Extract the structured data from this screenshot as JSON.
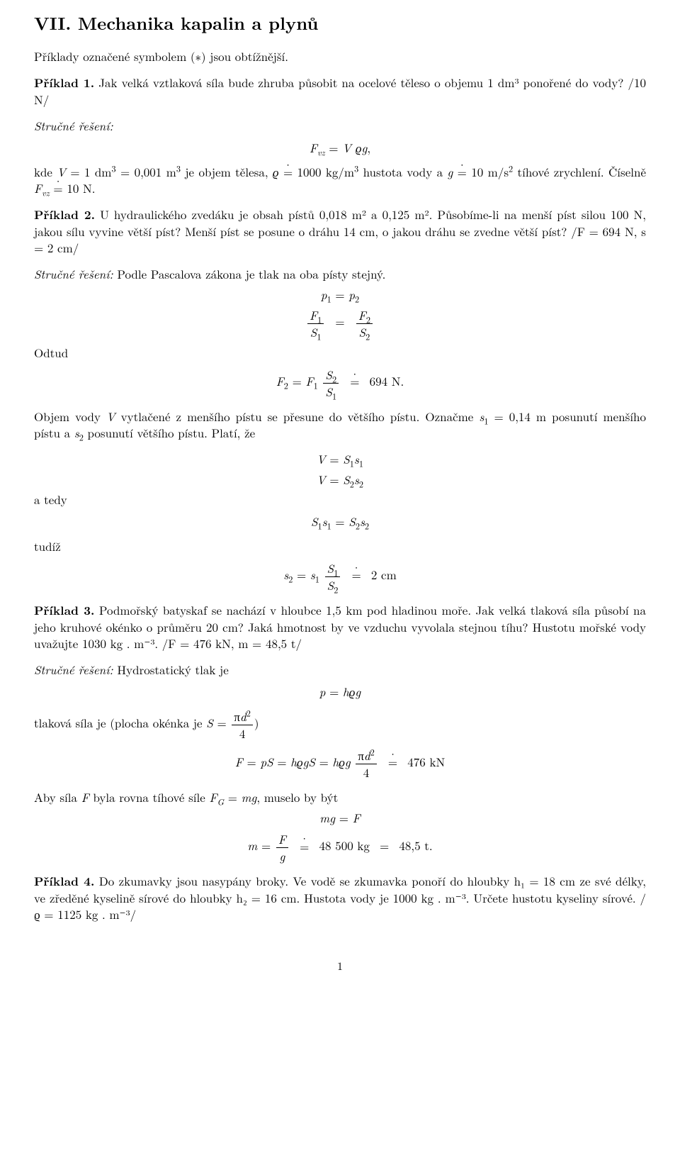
{
  "title": "VII. Mechanika kapalin a plynů",
  "intro": "Příklady označené symbolem (∗) jsou obtížnější.",
  "ex1": {
    "label": "Příklad 1.",
    "text": " Jak velká vztlaková síla bude zhruba působit na ocelové těleso o objemu 1 dm³ ponořené do vody? /10 N/",
    "sol_label": "Stručné řešení:",
    "eq": "F_{vz} = V ϱg,",
    "after": "kde V = 1 dm³ = 0,001 m³ je objem tělesa, ϱ ≐ 1000 kg/m³ hustota vody a g ≐ 10 m/s² tíhové zrychlení. Číselně F_{vz} ≐ 10 N."
  },
  "ex2": {
    "label": "Příklad 2.",
    "text": " U hydraulického zvedáku je obsah pístů 0,018 m² a 0,125 m². Působíme-li na menší píst silou 100 N, jakou sílu vyvine větší píst? Menší píst se posune o dráhu 14 cm, o jakou dráhu se zvedne větší píst? /F = 694 N, s = 2 cm/",
    "sol_label": "Stručné řešení:",
    "sol_text": " Podle Pascalova zákona je tlak na oba písty stejný.",
    "odtud": "Odtud",
    "vol_text": "Objem vody V vytlačené z menšího pístu se přesune do většího pístu. Označme s₁ = 0,14 m posunutí menšího pístu a s₂ posunutí většího pístu. Platí, že",
    "atedy": "a tedy",
    "tudiz": "tudíž"
  },
  "ex3": {
    "label": "Příklad 3.",
    "text": " Podmořský batyskaf se nachází v hloubce 1,5 km pod hladinou moře. Jak velká tlaková síla působí na jeho kruhové okénko o průměru 20 cm? Jaká hmotnost by ve vzduchu vyvolala stejnou tíhu? Hustotu mořské vody uvažujte 1030 kg . m⁻³. /F = 476 kN, m = 48,5 t/",
    "sol_label": "Stručné řešení:",
    "sol_text": " Hydrostatický tlak je",
    "tlak": "tlaková síla je (plocha okénka je S = ",
    "tlak2": ")",
    "aby": "Aby síla F byla rovna tíhové síle F_G = mg, muselo by být"
  },
  "ex4": {
    "label": "Příklad 4.",
    "text": " Do zkumavky jsou nasypány broky. Ve vodě se zkumavka ponoří do hloubky h₁ = 18 cm ze své délky, ve zředěné kyselině sírové do hloubky h₂ = 16 cm. Hustota vody je 1000 kg . m⁻³. Určete hustotu kyseliny sírové. /ϱ = 1125 kg . m⁻³/"
  },
  "pagenum": "1"
}
